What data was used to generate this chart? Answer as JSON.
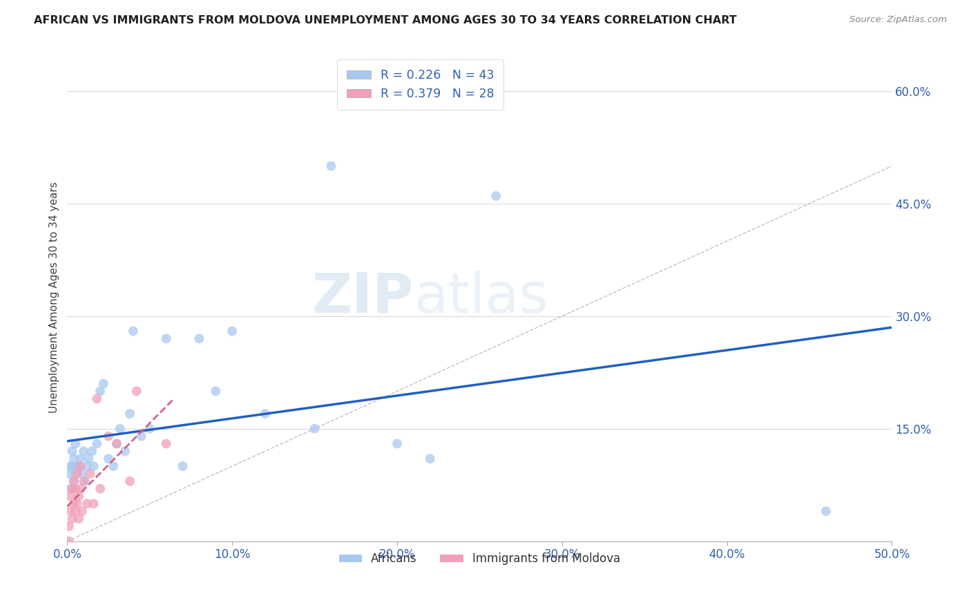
{
  "title": "AFRICAN VS IMMIGRANTS FROM MOLDOVA UNEMPLOYMENT AMONG AGES 30 TO 34 YEARS CORRELATION CHART",
  "source": "Source: ZipAtlas.com",
  "ylabel": "Unemployment Among Ages 30 to 34 years",
  "xlim": [
    0.0,
    0.5
  ],
  "ylim": [
    0.0,
    0.65
  ],
  "xticks": [
    0.0,
    0.1,
    0.2,
    0.3,
    0.4,
    0.5
  ],
  "yticks": [
    0.0,
    0.15,
    0.3,
    0.45,
    0.6
  ],
  "xticklabels": [
    "0.0%",
    "10.0%",
    "20.0%",
    "30.0%",
    "40.0%",
    "50.0%"
  ],
  "yticklabels": [
    "",
    "15.0%",
    "30.0%",
    "45.0%",
    "60.0%"
  ],
  "legend_r1": "R = 0.226",
  "legend_n1": "N = 43",
  "legend_r2": "R = 0.379",
  "legend_n2": "N = 28",
  "color_african": "#A8C8F0",
  "color_moldova": "#F0A0B8",
  "color_line_african": "#2060C0",
  "color_line_moldova": "#D86080",
  "color_diagonal": "#C0C0C0",
  "color_grid": "#D8D8D8",
  "color_title": "#202020",
  "color_axis_label": "#404040",
  "color_xtick": "#3060B0",
  "color_ytick": "#3060B0",
  "color_source": "#888888",
  "african_x": [
    0.001,
    0.002,
    0.002,
    0.003,
    0.003,
    0.004,
    0.004,
    0.005,
    0.005,
    0.006,
    0.007,
    0.008,
    0.009,
    0.01,
    0.011,
    0.012,
    0.013,
    0.015,
    0.016,
    0.018,
    0.02,
    0.022,
    0.025,
    0.028,
    0.03,
    0.032,
    0.035,
    0.038,
    0.04,
    0.045,
    0.05,
    0.06,
    0.07,
    0.08,
    0.09,
    0.1,
    0.12,
    0.15,
    0.16,
    0.2,
    0.22,
    0.26,
    0.46
  ],
  "african_y": [
    0.09,
    0.1,
    0.07,
    0.1,
    0.12,
    0.08,
    0.11,
    0.09,
    0.13,
    0.1,
    0.1,
    0.11,
    0.09,
    0.12,
    0.08,
    0.1,
    0.11,
    0.12,
    0.1,
    0.13,
    0.2,
    0.21,
    0.11,
    0.1,
    0.13,
    0.15,
    0.12,
    0.17,
    0.28,
    0.14,
    0.15,
    0.27,
    0.1,
    0.27,
    0.2,
    0.28,
    0.17,
    0.15,
    0.5,
    0.13,
    0.11,
    0.46,
    0.04
  ],
  "moldova_x": [
    0.001,
    0.001,
    0.002,
    0.002,
    0.003,
    0.003,
    0.004,
    0.004,
    0.005,
    0.005,
    0.006,
    0.006,
    0.007,
    0.007,
    0.008,
    0.008,
    0.009,
    0.01,
    0.012,
    0.014,
    0.016,
    0.018,
    0.02,
    0.025,
    0.03,
    0.038,
    0.042,
    0.06
  ],
  "moldova_y": [
    0.0,
    0.02,
    0.04,
    0.06,
    0.03,
    0.07,
    0.05,
    0.08,
    0.04,
    0.07,
    0.05,
    0.09,
    0.03,
    0.06,
    0.07,
    0.1,
    0.04,
    0.08,
    0.05,
    0.09,
    0.05,
    0.19,
    0.07,
    0.14,
    0.13,
    0.08,
    0.2,
    0.13
  ],
  "watermark_zip": "ZIP",
  "watermark_atlas": "atlas",
  "marker_size": 100
}
